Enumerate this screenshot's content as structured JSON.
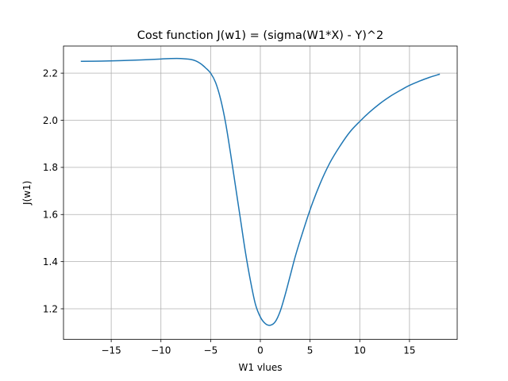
{
  "chart_data": {
    "type": "line",
    "title": "Cost function J(w1) = (sigma(W1*X) - Y)^2",
    "xlabel": "W1 vlues",
    "ylabel": "J(w1)",
    "xlim": [
      -19.8,
      19.8
    ],
    "ylim": [
      1.07,
      2.315
    ],
    "grid": true,
    "x_ticks": [
      -15,
      -10,
      -5,
      0,
      5,
      10,
      15
    ],
    "x_tick_labels": [
      "−15",
      "−10",
      "−5",
      "0",
      "5",
      "10",
      "15"
    ],
    "y_ticks": [
      1.2,
      1.4,
      1.6,
      1.8,
      2.0,
      2.2
    ],
    "y_tick_labels": [
      "1.2",
      "1.4",
      "1.6",
      "1.8",
      "2.0",
      "2.2"
    ],
    "series": [
      {
        "color": "#1f77b4",
        "x": [
          -18,
          -16,
          -14,
          -12,
          -10,
          -9,
          -8,
          -7,
          -6.5,
          -6,
          -5.5,
          -5,
          -4.5,
          -4,
          -3.5,
          -3,
          -2.5,
          -2,
          -1.5,
          -1,
          -0.5,
          0,
          0.5,
          1,
          1.5,
          2,
          2.5,
          3,
          3.5,
          4,
          5,
          6,
          7,
          8,
          9,
          10,
          11,
          12,
          13,
          14,
          15,
          16,
          17,
          18
        ],
        "y": [
          2.25,
          2.251,
          2.253,
          2.256,
          2.26,
          2.262,
          2.262,
          2.258,
          2.252,
          2.24,
          2.222,
          2.2,
          2.16,
          2.09,
          1.99,
          1.86,
          1.72,
          1.58,
          1.44,
          1.32,
          1.22,
          1.165,
          1.137,
          1.13,
          1.145,
          1.19,
          1.26,
          1.34,
          1.42,
          1.49,
          1.62,
          1.73,
          1.82,
          1.89,
          1.95,
          1.995,
          2.035,
          2.07,
          2.1,
          2.125,
          2.148,
          2.166,
          2.182,
          2.195
        ]
      }
    ]
  }
}
